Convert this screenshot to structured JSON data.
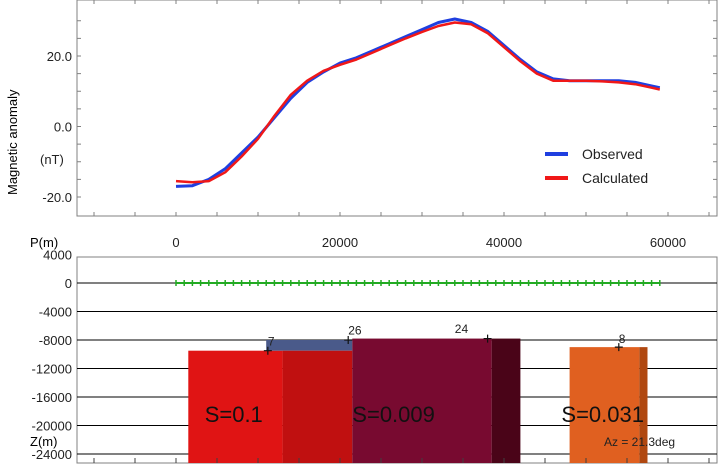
{
  "chart_data": [
    {
      "type": "line",
      "ylabel": "Magnetic anomaly",
      "yunit": "(nT)",
      "xlim": [
        -10000,
        68000
      ],
      "ylim": [
        -22,
        34
      ],
      "x_ticks": [
        0,
        20000,
        40000,
        60000
      ],
      "y_ticks": [
        -20.0,
        0.0,
        20.0
      ],
      "y_tick_labels": [
        "-20.0",
        "0.0",
        "20.0"
      ],
      "legend": {
        "placement": "lower-right"
      },
      "series": [
        {
          "name": "Observed",
          "color": "#1f3fe0",
          "x": [
            0,
            2000,
            4000,
            6000,
            8000,
            10000,
            12000,
            14000,
            16000,
            18000,
            20000,
            22000,
            24000,
            26000,
            28000,
            30000,
            32000,
            34000,
            36000,
            38000,
            40000,
            42000,
            44000,
            46000,
            48000,
            50000,
            52000,
            54000,
            56000,
            58000,
            59000
          ],
          "y": [
            -17,
            -16.8,
            -15,
            -12,
            -7.5,
            -3,
            2.5,
            8,
            12.5,
            15.5,
            18,
            19.5,
            21.5,
            23.5,
            25.5,
            27.5,
            29.5,
            30.5,
            29.5,
            27,
            23,
            19,
            15.5,
            13.5,
            13,
            13,
            13,
            13,
            12.5,
            11.5,
            11
          ]
        },
        {
          "name": "Calculated",
          "color": "#f01818",
          "x": [
            0,
            2000,
            4000,
            6000,
            8000,
            10000,
            12000,
            14000,
            16000,
            18000,
            20000,
            22000,
            24000,
            26000,
            28000,
            30000,
            32000,
            34000,
            36000,
            38000,
            40000,
            42000,
            44000,
            46000,
            48000,
            50000,
            52000,
            54000,
            56000,
            58000,
            59000
          ],
          "y": [
            -15.5,
            -15.8,
            -15.5,
            -13,
            -8.5,
            -3.5,
            3,
            9,
            13,
            15.8,
            17.5,
            19,
            21,
            23,
            25,
            26.8,
            28.5,
            29.5,
            29,
            26.5,
            22.5,
            18.5,
            15,
            13,
            13,
            13,
            12.8,
            12.5,
            12,
            11,
            10.5
          ]
        }
      ]
    },
    {
      "type": "bar",
      "ylabel_top": "P(m)",
      "ylabel_bottom": "Z(m)",
      "xlim": [
        -10000,
        68000
      ],
      "ylim": [
        -26000,
        4000
      ],
      "y_ticks": [
        4000,
        0,
        -4000,
        -8000,
        -12000,
        -16000,
        -20000,
        -24000
      ],
      "y_tick_labels": [
        "4000",
        "0",
        "-4000",
        "-8000",
        "-12000",
        "-16000",
        "-20000",
        "-24000"
      ],
      "stations": {
        "color": "#22aa22",
        "from": 0,
        "to": 59000,
        "step": 1000
      },
      "bodies": [
        {
          "id": "7",
          "x0": 1500,
          "x1": 13000,
          "top": -9500,
          "color": "#e01414"
        },
        {
          "id": "26",
          "x0": 11000,
          "x1": 21500,
          "top": -8000,
          "color": "#4a5a8a",
          "top_band_only": true
        },
        {
          "id": "main-red-right",
          "x0": 13000,
          "x1": 21500,
          "top": -9500,
          "color": "#c01010"
        },
        {
          "id": "24",
          "x0": 21500,
          "x1": 38500,
          "top": -7800,
          "color": "#780a30"
        },
        {
          "id": "24-dark",
          "x0": 38500,
          "x1": 42000,
          "top": -7800,
          "color": "#4a0418"
        },
        {
          "id": "8",
          "x0": 48000,
          "x1": 56500,
          "top": -9000,
          "color": "#e06020"
        },
        {
          "id": "8-dark",
          "x0": 56500,
          "x1": 57500,
          "top": -9000,
          "color": "#b04810"
        }
      ],
      "body_labels": [
        {
          "text": "7",
          "x": 11200,
          "y": -8800
        },
        {
          "text": "26",
          "x": 21000,
          "y": -7200
        },
        {
          "text": "24",
          "x": 34000,
          "y": -7000
        },
        {
          "text": "8",
          "x": 54000,
          "y": -8400
        }
      ],
      "susceptibility_labels": [
        {
          "text": "S=0.1",
          "x": 3500,
          "y": -19500
        },
        {
          "text": "S=0.009",
          "x": 21500,
          "y": -19500
        },
        {
          "text": "S=0.031",
          "x": 47000,
          "y": -19500
        }
      ],
      "azimuth": "Az = 21.3deg"
    }
  ]
}
